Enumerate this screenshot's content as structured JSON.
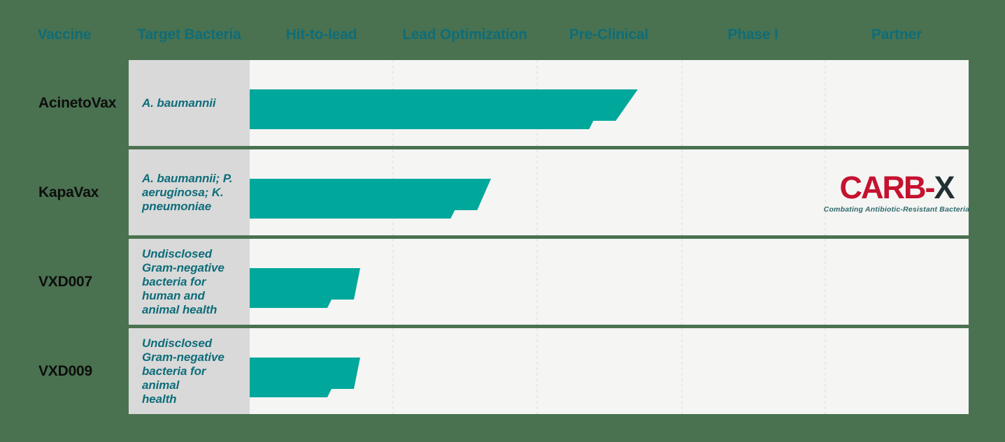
{
  "colors": {
    "background_green": "#4a7250",
    "row_band": "#f5f5f4",
    "bacteria_cell_gray": "#d9d9d9",
    "bar_teal": "#00a79b",
    "heading_teal": "#0e6d79",
    "vaccine_text_black": "#0d0d0d",
    "gridline": "#e8e8e6",
    "logo_red": "#c5122f",
    "logo_dark": "#222f33",
    "logo_tagline_teal": "#2e6a6c"
  },
  "header": {
    "columns": [
      {
        "label": "Vaccine"
      },
      {
        "label": "Target Bacteria"
      },
      {
        "label": "Hit-to-lead"
      },
      {
        "label": "Lead Optimization"
      },
      {
        "label": "Pre-Clinical"
      },
      {
        "label": "Phase I"
      },
      {
        "label": "Partner"
      }
    ]
  },
  "rows": [
    {
      "vaccine": "AcinetoVax",
      "bacteria_lines": [
        "A. baumannii"
      ],
      "progress_stages": 2.7,
      "partner": null
    },
    {
      "vaccine": "KapaVax",
      "bacteria_lines": [
        "A. baumannii; P.",
        "aeruginosa; K.",
        "pneumoniae"
      ],
      "progress_stages": 1.68,
      "partner": "CARB-X"
    },
    {
      "vaccine": "VXD007",
      "bacteria_lines": [
        "Undisclosed",
        "Gram-negative",
        "bacteria for",
        "human and",
        "animal health"
      ],
      "progress_stages": 0.77,
      "partner": null
    },
    {
      "vaccine": "VXD009",
      "bacteria_lines": [
        "Undisclosed",
        "Gram-negative",
        "bacteria for animal",
        "health"
      ],
      "progress_stages": 0.77,
      "partner": null
    }
  ],
  "logo": {
    "primary": "CARB-",
    "accent": "X",
    "tagline": "Combating Antibiotic-Resistant Bacteria"
  },
  "chart_data": {
    "type": "bar",
    "orientation": "horizontal",
    "title": "",
    "stages": [
      "Hit-to-lead",
      "Lead Optimization",
      "Pre-Clinical",
      "Phase I",
      "Partner"
    ],
    "categories": [
      "AcinetoVax",
      "KapaVax",
      "VXD007",
      "VXD009"
    ],
    "target_bacteria": [
      "A. baumannii",
      "A. baumannii; P. aeruginosa; K. pneumoniae",
      "Undisclosed Gram-negative bacteria for human and animal health",
      "Undisclosed Gram-negative bacteria for animal health"
    ],
    "values": [
      2.7,
      1.68,
      0.77,
      0.77
    ],
    "value_meaning": "pipeline stages completed, measured from start of Hit-to-lead",
    "partners": [
      null,
      "CARB-X",
      null,
      null
    ],
    "xlim": [
      0,
      5
    ],
    "grid": "dashed vertical lines at stage boundaries",
    "legend": "none",
    "bar_color": "#00a79b"
  },
  "layout_note": ""
}
